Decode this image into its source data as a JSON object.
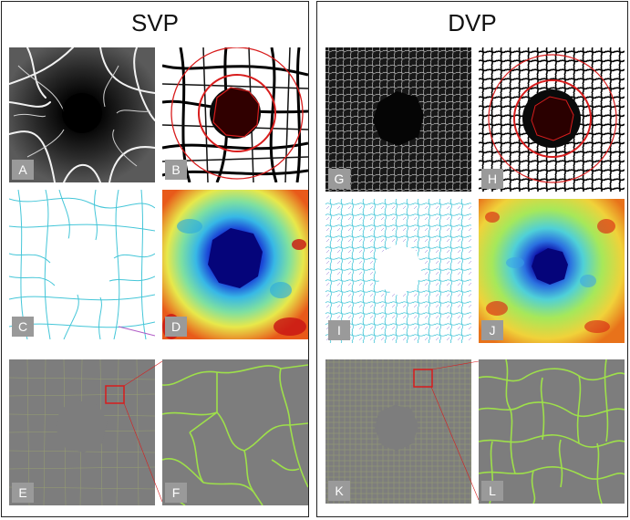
{
  "groups": [
    {
      "title": "SVP",
      "panels": [
        {
          "label": "A"
        },
        {
          "label": "B"
        },
        {
          "label": "C"
        },
        {
          "label": "D"
        },
        {
          "label": "E"
        },
        {
          "label": "F"
        }
      ]
    },
    {
      "title": "DVP",
      "panels": [
        {
          "label": "G"
        },
        {
          "label": "H"
        },
        {
          "label": "I"
        },
        {
          "label": "J"
        },
        {
          "label": "K"
        },
        {
          "label": "L"
        }
      ]
    }
  ],
  "colors": {
    "ring": "#d81d1d",
    "skeleton_cyan": "#44c6d8",
    "skeleton_green": "#9ee04a",
    "tile_gray": "#7d7d7d",
    "heat_blue": "#1836c8",
    "heat_dark": "#05047a"
  }
}
